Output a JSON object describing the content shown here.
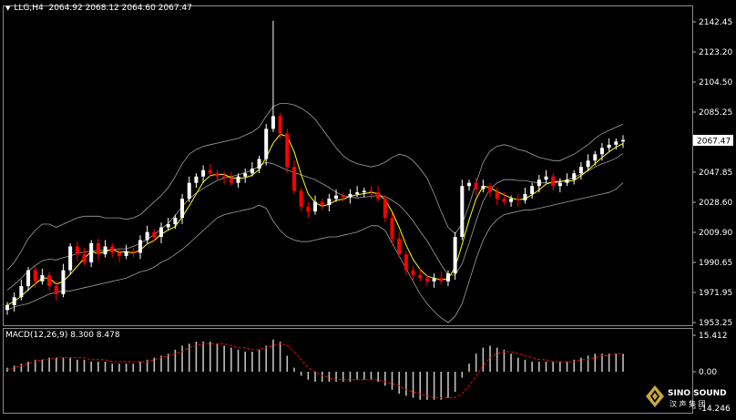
{
  "header": {
    "symbol": "LLG,H4",
    "ohlc": "2064.92 2068.12 2064.60 2067.47"
  },
  "price_axis": {
    "ticks": [
      "2142.45",
      "2123.20",
      "2104.50",
      "2085.25",
      "2066.00",
      "2047.85",
      "2028.60",
      "2009.90",
      "1990.65",
      "1971.95",
      "1953.25"
    ],
    "current_price": "2067.47"
  },
  "macd": {
    "label": "MACD(12,26,9) 8.300 8.478",
    "ticks": [
      "15.412",
      "0.00",
      "-14.246"
    ]
  },
  "logo": {
    "brand": "SINO SOUND",
    "chinese": "汉 声 集 团"
  },
  "colors": {
    "background": "#000000",
    "bull_candle": "#ffffff",
    "bear_candle": "#ff0000",
    "bollinger": "#a0a0a0",
    "moving_average": "#ffff00",
    "macd_histogram": "#c0c0c0",
    "macd_signal": "#ff0000"
  },
  "chart_data": {
    "type": "candlestick",
    "ylim": [
      1953.25,
      2142.45
    ],
    "price_series": [
      1963,
      1968,
      1975,
      1985,
      1978,
      1982,
      1975,
      1970,
      1985,
      2000,
      1995,
      1990,
      2002,
      1995,
      2000,
      1996,
      1994,
      1997,
      1996,
      2004,
      2009,
      2006,
      2012,
      2014,
      2018,
      2030,
      2040,
      2044,
      2048,
      2046,
      2044,
      2043,
      2040,
      2044,
      2046,
      2049,
      2055,
      2074,
      2082,
      2071,
      2050,
      2035,
      2025,
      2022,
      2028,
      2026,
      2030,
      2032,
      2031,
      2033,
      2034,
      2035,
      2034,
      2030,
      2018,
      2005,
      1995,
      1985,
      1982,
      1980,
      1978,
      1980,
      1978,
      1983,
      2006,
      2038,
      2040,
      2036,
      2038,
      2034,
      2030,
      2028,
      2030,
      2029,
      2033,
      2038,
      2042,
      2044,
      2038,
      2040,
      2042,
      2046,
      2050,
      2054,
      2058,
      2062,
      2064,
      2066,
      2067
    ],
    "bb_upper": [
      1985,
      1990,
      1997,
      2005,
      2010,
      2014,
      2014,
      2012,
      2014,
      2016,
      2018,
      2019,
      2019,
      2019,
      2018,
      2018,
      2018,
      2017,
      2018,
      2020,
      2024,
      2028,
      2032,
      2037,
      2044,
      2052,
      2058,
      2061,
      2063,
      2064,
      2065,
      2066,
      2067,
      2068,
      2070,
      2072,
      2075,
      2082,
      2088,
      2090,
      2090,
      2089,
      2087,
      2084,
      2080,
      2074,
      2068,
      2062,
      2057,
      2054,
      2052,
      2051,
      2050,
      2051,
      2053,
      2056,
      2058,
      2057,
      2054,
      2049,
      2043,
      2033,
      2022,
      2012,
      2008,
      2014,
      2026,
      2040,
      2053,
      2060,
      2063,
      2064,
      2063,
      2061,
      2060,
      2058,
      2056,
      2055,
      2054,
      2054,
      2056,
      2058,
      2061,
      2064,
      2068,
      2071,
      2073,
      2075,
      2077
    ],
    "bb_lower": [
      1960,
      1962,
      1963,
      1964,
      1966,
      1968,
      1970,
      1971,
      1972,
      1972,
      1973,
      1974,
      1975,
      1976,
      1977,
      1978,
      1979,
      1980,
      1982,
      1984,
      1985,
      1987,
      1990,
      1992,
      1995,
      1998,
      2002,
      2006,
      2010,
      2014,
      2018,
      2020,
      2021,
      2022,
      2023,
      2024,
      2026,
      2024,
      2016,
      2010,
      2006,
      2004,
      2003,
      2003,
      2004,
      2005,
      2006,
      2006,
      2007,
      2008,
      2009,
      2011,
      2013,
      2013,
      2010,
      2002,
      1994,
      1986,
      1978,
      1970,
      1964,
      1959,
      1955,
      1952,
      1956,
      1964,
      1978,
      1992,
      2004,
      2012,
      2017,
      2020,
      2021,
      2022,
      2023,
      2023,
      2024,
      2025,
      2026,
      2027,
      2028,
      2029,
      2030,
      2031,
      2032,
      2033,
      2034,
      2036,
      2040
    ],
    "macd_hist": [
      2,
      3,
      4,
      5,
      6,
      6,
      7,
      7,
      7,
      7,
      6,
      6,
      5,
      5,
      5,
      4,
      4,
      4,
      4,
      5,
      6,
      7,
      8,
      9,
      11,
      13,
      14,
      15,
      15,
      15,
      14,
      13,
      12,
      11,
      10,
      10,
      11,
      13,
      16,
      15,
      8,
      2,
      -2,
      -4,
      -5,
      -5,
      -5,
      -5,
      -5,
      -5,
      -4,
      -4,
      -4,
      -5,
      -7,
      -9,
      -11,
      -12,
      -13,
      -14,
      -14,
      -14,
      -14,
      -13,
      -10,
      -3,
      4,
      9,
      12,
      13,
      12,
      11,
      9,
      7,
      6,
      5,
      5,
      5,
      5,
      5,
      5,
      6,
      7,
      8,
      9,
      9,
      9,
      9,
      9
    ],
    "macd_signal": [
      1,
      2,
      3,
      4,
      5,
      6,
      6,
      7,
      7,
      7,
      7,
      7,
      6,
      6,
      6,
      5,
      5,
      5,
      5,
      5,
      5,
      6,
      7,
      8,
      9,
      10,
      12,
      13,
      14,
      14,
      14,
      14,
      13,
      12,
      12,
      11,
      11,
      12,
      13,
      14,
      13,
      10,
      6,
      2,
      0,
      -2,
      -3,
      -4,
      -4,
      -4,
      -4,
      -4,
      -4,
      -4,
      -5,
      -6,
      -7,
      -9,
      -10,
      -11,
      -12,
      -13,
      -13,
      -13,
      -13,
      -11,
      -7,
      -2,
      3,
      7,
      9,
      10,
      10,
      9,
      8,
      7,
      6,
      6,
      5,
      5,
      5,
      5,
      6,
      6,
      7,
      8,
      8,
      9,
      9
    ]
  }
}
